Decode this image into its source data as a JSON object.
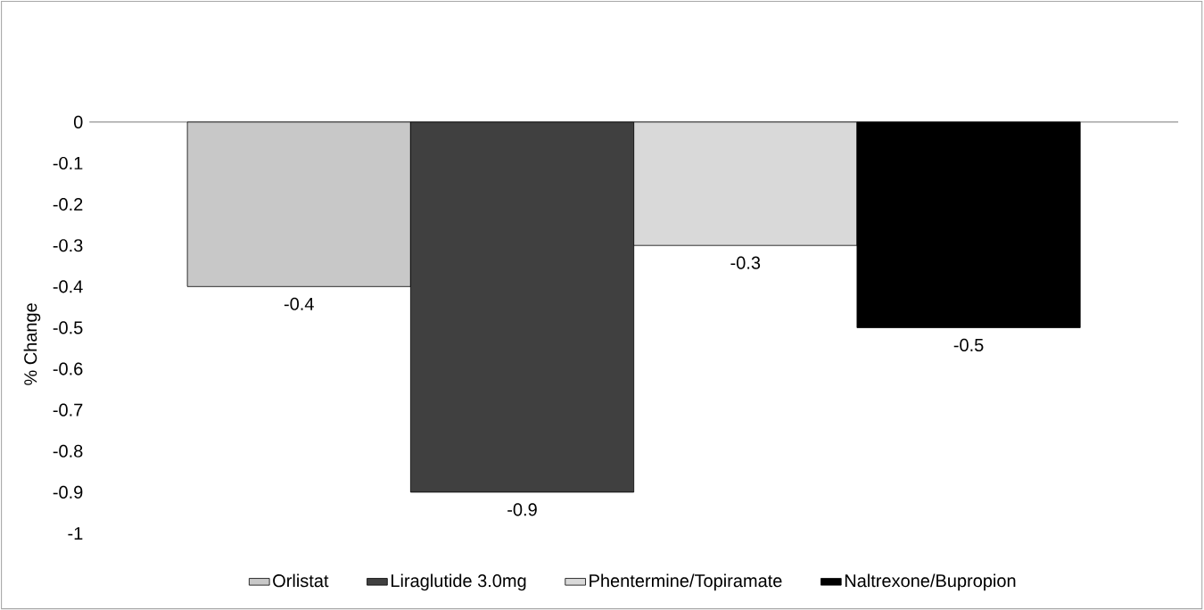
{
  "chart_data": {
    "type": "bar",
    "ylabel": "% Change",
    "categories": [
      null
    ],
    "series": [
      {
        "name": "Orlistat",
        "color": "#c8c8c8",
        "values": [
          -0.4
        ]
      },
      {
        "name": "Liraglutide 3.0mg",
        "color": "#404040",
        "values": [
          -0.9
        ]
      },
      {
        "name": "Phentermine/Topiramate",
        "color": "#d9d9d9",
        "values": [
          -0.3
        ]
      },
      {
        "name": "Naltrexone/Bupropion",
        "color": "#000000",
        "values": [
          -0.5
        ]
      }
    ],
    "ylim": [
      -1,
      0
    ],
    "yticks": [
      0,
      -0.1,
      -0.2,
      -0.3,
      -0.4,
      -0.5,
      -0.6,
      -0.7,
      -0.8,
      -0.9,
      -1
    ],
    "data_labels": true,
    "legend": "bottom"
  }
}
